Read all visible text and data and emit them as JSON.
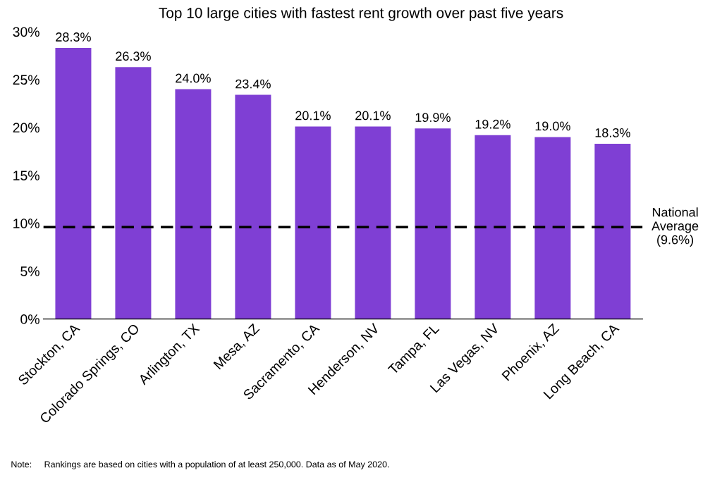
{
  "chart_data": {
    "type": "bar",
    "title": "Top 10 large cities with fastest rent growth over past five years",
    "categories": [
      "Stockton, CA",
      "Colorado Springs, CO",
      "Arlington, TX",
      "Mesa, AZ",
      "Sacramento, CA",
      "Henderson, NV",
      "Tampa, FL",
      "Las Vegas, NV",
      "Phoenix, AZ",
      "Long Beach, CA"
    ],
    "values": [
      28.3,
      26.3,
      24.0,
      23.4,
      20.1,
      20.1,
      19.9,
      19.2,
      19.0,
      18.3
    ],
    "value_labels": [
      "28.3%",
      "26.3%",
      "24.0%",
      "23.4%",
      "20.1%",
      "20.1%",
      "19.9%",
      "19.2%",
      "19.0%",
      "18.3%"
    ],
    "color": "#7f3fd4",
    "ylim": [
      0,
      30
    ],
    "yticks": [
      {
        "value": 0,
        "label": "0%"
      },
      {
        "value": 5,
        "label": "5%"
      },
      {
        "value": 10,
        "label": "10%"
      },
      {
        "value": 15,
        "label": "15%"
      },
      {
        "value": 20,
        "label": "20%"
      },
      {
        "value": 25,
        "label": "25%"
      },
      {
        "value": 30,
        "label": "30%"
      }
    ],
    "ref_lines": [
      {
        "axis": "y",
        "value": 9.6,
        "label": "National\nAverage\n(9.6%)",
        "color": "#000000",
        "line_style": "dashed"
      }
    ],
    "annotations": [
      "Note:     Rankings are based on cities with a population of at least 250,000. Data as of May 2020."
    ],
    "grid": false,
    "legend": false
  }
}
